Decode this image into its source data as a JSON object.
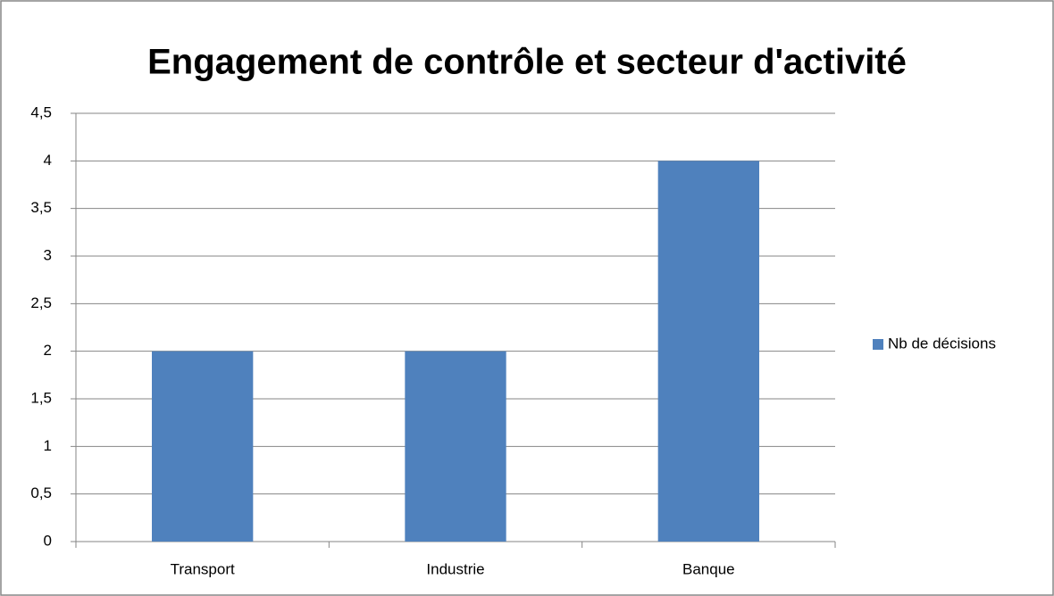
{
  "chart_data": {
    "type": "bar",
    "title": "Engagement de contrôle et secteur d'activité",
    "categories": [
      "Transport",
      "Industrie",
      "Banque"
    ],
    "series": [
      {
        "name": "Nb de décisions",
        "color": "#4f81bd",
        "values": [
          2,
          2,
          4
        ]
      }
    ],
    "ylim": [
      0,
      4.5
    ],
    "yticks": [
      0,
      {
        "value": 0.5,
        "label": "0,5"
      },
      1,
      {
        "value": 1.5,
        "label": "1,5"
      },
      2,
      {
        "value": 2.5,
        "label": "2,5"
      },
      3,
      {
        "value": 3.5,
        "label": "3,5"
      },
      4,
      {
        "value": 4.5,
        "label": "4,5"
      }
    ],
    "grid": true,
    "legend": "right"
  }
}
